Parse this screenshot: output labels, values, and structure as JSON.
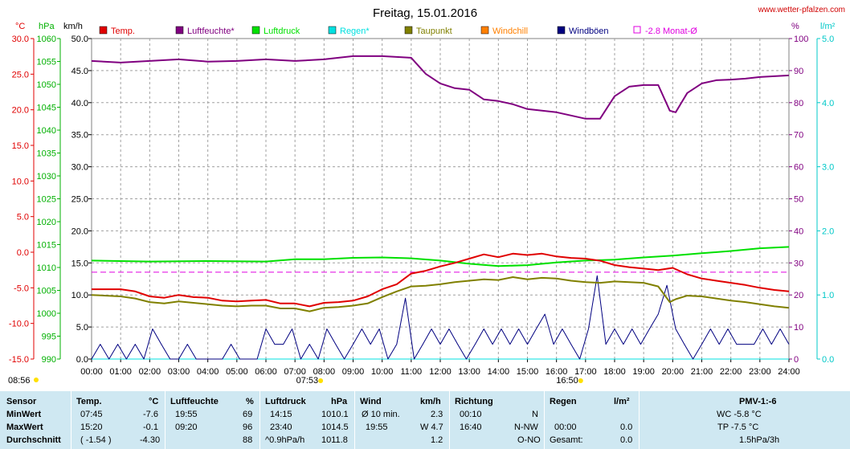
{
  "header": {
    "title": "Freitag, 15.01.2016",
    "website": "www.wetter-pfalzen.com"
  },
  "legend": [
    {
      "label": "Temp.",
      "color": "#e00000"
    },
    {
      "label": "Luftfeuchte*",
      "color": "#800080"
    },
    {
      "label": "Luftdruck",
      "color": "#00e000"
    },
    {
      "label": "Regen*",
      "color": "#00e0e0"
    },
    {
      "label": "Taupunkt",
      "color": "#808000"
    },
    {
      "label": "Windchill",
      "color": "#ff8000"
    },
    {
      "label": "Windböen",
      "color": "#000080"
    },
    {
      "label": "-2.8 Monat-Ø",
      "color": "#e000e0"
    }
  ],
  "axes": {
    "temp": {
      "unit": "°C",
      "color": "#e00000",
      "ticks": [
        "30.0",
        "25.0",
        "20.0",
        "15.0",
        "10.0",
        "5.0",
        "0.0",
        "-5.0",
        "-10.0",
        "-15.0"
      ]
    },
    "pressure": {
      "unit": "hPa",
      "color": "#00b000",
      "ticks": [
        "1060",
        "1055",
        "1050",
        "1045",
        "1040",
        "1035",
        "1030",
        "1025",
        "1020",
        "1015",
        "1010",
        "1005",
        "1000",
        "995",
        "990"
      ]
    },
    "wind": {
      "unit": "km/h",
      "color": "#000000",
      "ticks": [
        "50.0",
        "45.0",
        "40.0",
        "35.0",
        "30.0",
        "25.0",
        "20.0",
        "15.0",
        "10.0",
        "5.0",
        "0.0"
      ]
    },
    "humidity": {
      "unit": "%",
      "color": "#800080",
      "ticks": [
        "100",
        "90",
        "80",
        "70",
        "60",
        "50",
        "40",
        "30",
        "20",
        "10",
        "0"
      ]
    },
    "rain": {
      "unit": "l/m²",
      "color": "#00c8c8",
      "ticks": [
        "5.0",
        "4.0",
        "3.0",
        "2.0",
        "1.0",
        "0.0"
      ]
    },
    "time_ticks": [
      "00:00",
      "01:00",
      "02:00",
      "03:00",
      "04:00",
      "05:00",
      "06:00",
      "07:00",
      "08:00",
      "09:00",
      "10:00",
      "11:00",
      "12:00",
      "13:00",
      "14:00",
      "15:00",
      "16:00",
      "17:00",
      "18:00",
      "19:00",
      "20:00",
      "21:00",
      "22:00",
      "23:00",
      "24:00"
    ]
  },
  "markers": {
    "sunrise": "07:53",
    "sunset": "16:50",
    "now": "08:56"
  },
  "chart_data": {
    "type": "line",
    "title": "Freitag, 15.01.2016",
    "x_range": [
      "00:00",
      "24:00"
    ],
    "grid": true,
    "legend_position": "top",
    "monthly_avg_temp": -2.8,
    "series": [
      {
        "name": "Temp.",
        "axis": "temp",
        "color": "#e00000",
        "x": [
          0,
          1,
          1.5,
          2,
          2.5,
          3,
          3.5,
          4,
          4.5,
          5,
          5.5,
          6,
          6.5,
          7,
          7.5,
          8,
          8.5,
          9,
          9.5,
          10,
          10.5,
          11,
          11.5,
          12,
          12.5,
          13,
          13.5,
          14,
          14.5,
          15,
          15.5,
          16,
          16.5,
          17,
          17.5,
          18,
          18.5,
          19,
          19.5,
          20,
          20.5,
          21,
          21.5,
          22,
          22.5,
          23,
          23.5,
          24
        ],
        "y": [
          -5.2,
          -5.2,
          -5.5,
          -6.2,
          -6.4,
          -6.0,
          -6.3,
          -6.4,
          -6.8,
          -6.9,
          -6.8,
          -6.7,
          -7.2,
          -7.2,
          -7.6,
          -7.1,
          -7.0,
          -6.8,
          -6.2,
          -5.2,
          -4.5,
          -3.0,
          -2.6,
          -2.0,
          -1.5,
          -0.9,
          -0.3,
          -0.7,
          -0.2,
          -0.4,
          -0.2,
          -0.6,
          -0.8,
          -0.9,
          -1.2,
          -1.8,
          -2.1,
          -2.3,
          -2.5,
          -2.2,
          -3.1,
          -3.7,
          -4.0,
          -4.3,
          -4.6,
          -5.0,
          -5.3,
          -5.5
        ]
      },
      {
        "name": "Luftfeuchte*",
        "axis": "humidity",
        "color": "#800080",
        "x": [
          0,
          1,
          2,
          3,
          4,
          5,
          6,
          7,
          8,
          9,
          10,
          11,
          11.5,
          12,
          12.5,
          13,
          13.5,
          14,
          14.5,
          15,
          15.5,
          16,
          16.5,
          17,
          17.5,
          18,
          18.5,
          19,
          19.5,
          19.9,
          20.1,
          20.5,
          21,
          21.5,
          22,
          22.5,
          23,
          24
        ],
        "y": [
          93,
          92.5,
          93,
          93.5,
          92.8,
          93,
          93.5,
          93,
          93.5,
          94.5,
          94.5,
          94,
          89,
          86,
          84.5,
          84,
          81,
          80.5,
          79.5,
          78,
          77.5,
          77,
          76,
          75,
          75,
          82,
          85,
          85.5,
          85.5,
          77.5,
          77,
          83,
          86,
          87,
          87.2,
          87.5,
          88,
          88.5
        ]
      },
      {
        "name": "Luftdruck",
        "axis": "pressure",
        "color": "#00e000",
        "x": [
          0,
          2,
          4,
          6,
          7,
          8,
          9,
          10,
          11,
          12,
          13,
          14,
          15,
          16,
          17,
          18,
          19,
          20,
          21,
          22,
          23,
          24
        ],
        "y": [
          1011.5,
          1011.3,
          1011.4,
          1011.3,
          1011.8,
          1011.8,
          1012.1,
          1012.2,
          1012.0,
          1011.5,
          1010.8,
          1010.3,
          1010.5,
          1011.1,
          1011.5,
          1011.7,
          1012.2,
          1012.6,
          1013.1,
          1013.6,
          1014.2,
          1014.5
        ]
      },
      {
        "name": "Regen*",
        "axis": "rain",
        "color": "#00e0e0",
        "x": [
          0,
          24
        ],
        "y": [
          0.0,
          0.0
        ]
      },
      {
        "name": "Taupunkt",
        "axis": "temp",
        "color": "#808000",
        "x": [
          0,
          1,
          1.5,
          2,
          2.5,
          3,
          3.5,
          4,
          4.5,
          5,
          5.5,
          6,
          6.5,
          7,
          7.5,
          8,
          8.5,
          9,
          9.5,
          10,
          10.5,
          11,
          11.5,
          12,
          12.5,
          13,
          13.5,
          14,
          14.5,
          15,
          15.5,
          16,
          16.5,
          17,
          17.5,
          18,
          18.5,
          19,
          19.5,
          19.9,
          20.1,
          20.5,
          21,
          21.5,
          22,
          22.5,
          23,
          23.5,
          24
        ],
        "y": [
          -6.0,
          -6.2,
          -6.5,
          -7.0,
          -7.2,
          -6.9,
          -7.1,
          -7.3,
          -7.5,
          -7.6,
          -7.5,
          -7.5,
          -7.9,
          -7.9,
          -8.3,
          -7.8,
          -7.7,
          -7.5,
          -7.2,
          -6.3,
          -5.5,
          -4.8,
          -4.7,
          -4.5,
          -4.2,
          -4.0,
          -3.8,
          -3.9,
          -3.5,
          -3.8,
          -3.6,
          -3.7,
          -4.0,
          -4.2,
          -4.3,
          -4.1,
          -4.2,
          -4.3,
          -4.8,
          -7.0,
          -6.6,
          -6.1,
          -6.2,
          -6.5,
          -6.8,
          -7.0,
          -7.3,
          -7.6,
          -7.8
        ]
      },
      {
        "name": "Windböen",
        "axis": "wind",
        "color": "#000080",
        "x": [
          0,
          0.3,
          0.6,
          0.9,
          1.2,
          1.5,
          1.8,
          2.1,
          2.4,
          2.7,
          3.0,
          3.3,
          3.6,
          3.9,
          4.2,
          4.5,
          4.8,
          5.1,
          5.4,
          5.7,
          6.0,
          6.3,
          6.6,
          6.9,
          7.2,
          7.5,
          7.8,
          8.1,
          8.4,
          8.7,
          9.0,
          9.3,
          9.6,
          9.9,
          10.2,
          10.5,
          10.8,
          11.1,
          11.4,
          11.7,
          12.0,
          12.3,
          12.6,
          12.9,
          13.2,
          13.5,
          13.8,
          14.1,
          14.4,
          14.7,
          15.0,
          15.3,
          15.6,
          15.9,
          16.2,
          16.5,
          16.8,
          17.1,
          17.4,
          17.7,
          18.0,
          18.3,
          18.6,
          18.9,
          19.2,
          19.5,
          19.8,
          20.1,
          20.4,
          20.7,
          21.0,
          21.3,
          21.6,
          21.9,
          22.2,
          22.5,
          22.8,
          23.1,
          23.4,
          23.7,
          24.0
        ],
        "y": [
          0,
          2.3,
          0,
          2.3,
          0,
          2.3,
          0,
          4.7,
          2.3,
          0,
          0,
          2.3,
          0,
          0,
          0,
          0,
          2.3,
          0,
          0,
          0,
          4.7,
          2.3,
          2.3,
          4.7,
          0,
          2.3,
          0,
          4.7,
          2.3,
          0,
          2.3,
          4.7,
          2.3,
          4.7,
          0,
          2.3,
          9.5,
          0,
          2.3,
          4.7,
          2.3,
          4.7,
          2.3,
          0,
          2.3,
          4.7,
          2.3,
          4.7,
          2.3,
          4.7,
          2.3,
          4.7,
          7.0,
          2.3,
          4.7,
          2.3,
          0,
          4.7,
          13.0,
          2.3,
          4.7,
          2.3,
          4.7,
          2.3,
          4.7,
          7.0,
          11.5,
          4.7,
          2.3,
          0,
          2.3,
          4.7,
          2.3,
          4.7,
          2.3,
          2.3,
          2.3,
          4.7,
          2.3,
          4.7,
          2.3
        ]
      }
    ]
  },
  "table": {
    "headers": {
      "sensor": "Sensor",
      "temp": "Temp.",
      "temp_unit": "°C",
      "hum": "Luftfeuchte",
      "hum_unit": "%",
      "press": "Luftdruck",
      "press_unit": "hPa",
      "wind": "Wind",
      "wind_unit": "km/h",
      "dir": "Richtung",
      "rain": "Regen",
      "rain_unit": "l/m²",
      "pmv": "PMV-1:-6"
    },
    "rows": [
      {
        "label": "MinWert",
        "temp_time": "07:45",
        "temp_val": "-7.6",
        "hum_time": "19:55",
        "hum_val": "69",
        "press_time": "14:15",
        "press_val": "1010.1",
        "wind_time": "Ø 10 min.",
        "wind_val": "2.3",
        "dir_time": "00:10",
        "dir_val": "N",
        "rain_time": "",
        "rain_val": "",
        "pmv": "WC -5.8 °C"
      },
      {
        "label": "MaxWert",
        "temp_time": "15:20",
        "temp_val": "-0.1",
        "hum_time": "09:20",
        "hum_val": "96",
        "press_time": "23:40",
        "press_val": "1014.5",
        "wind_time": "19:55",
        "wind_val": "W 4.7",
        "dir_time": "16:40",
        "dir_val": "N-NW",
        "rain_time": "00:00",
        "rain_val": "0.0",
        "pmv": "TP -7.5 °C"
      },
      {
        "label": "Durchschnitt",
        "temp_time": "( -1.54 )",
        "temp_val": "-4.30",
        "hum_time": "",
        "hum_val": "88",
        "press_time": "^0.9hPa/h",
        "press_val": "1011.8",
        "wind_time": "",
        "wind_val": "1.2",
        "dir_time": "",
        "dir_val": "O-NO",
        "rain_time": "Gesamt:",
        "rain_val": "0.0",
        "pmv": "1.5hPa/3h"
      }
    ]
  }
}
